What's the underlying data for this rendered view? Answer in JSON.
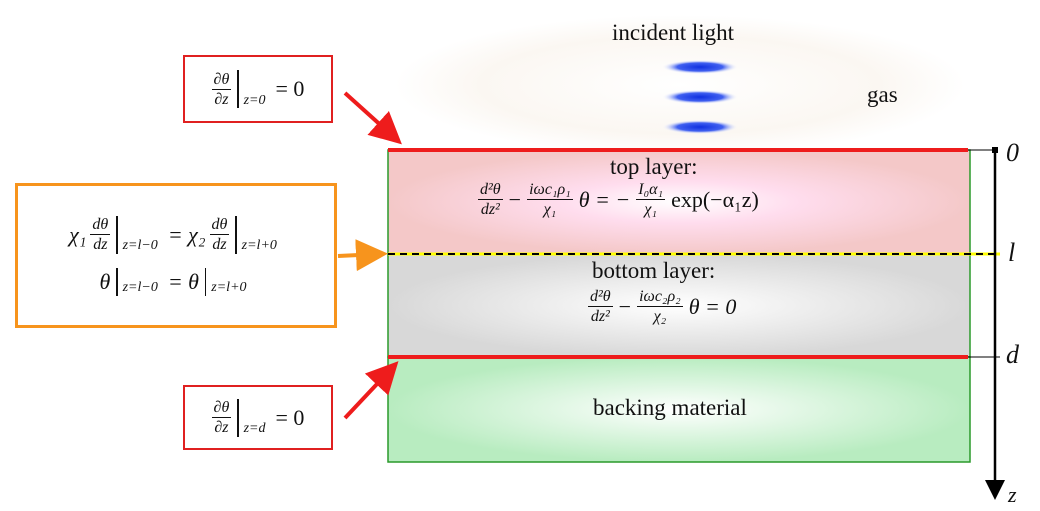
{
  "labels": {
    "incident": "incident light",
    "gas": "gas",
    "top": "top layer:",
    "bottom": "bottom layer:",
    "backing": "backing material"
  },
  "axis": {
    "zero": "0",
    "l": "l",
    "d": "d",
    "z": "z"
  },
  "bc_top": {
    "num": "∂θ",
    "den": "∂z",
    "sub": "z=0",
    "rhs": "= 0"
  },
  "bc_bottom": {
    "num": "∂θ",
    "den": "∂z",
    "sub": "z=d",
    "rhs": "= 0"
  },
  "interface": {
    "line1": {
      "chi1": "χ₁",
      "num1": "dθ",
      "den1": "dz",
      "sub1": "z=l−0",
      "chi2": "= χ₂",
      "num2": "dθ",
      "den2": "dz",
      "sub2": "z=l+0"
    },
    "line2": {
      "lhs": "θ",
      "sub1": "z=l−0",
      "mid": "= θ",
      "sub2": "z=l+0"
    }
  },
  "top_eq": {
    "num1": "d²θ",
    "den1": "dz²",
    "op": "−",
    "num2": "iωc₁ρ₁",
    "den2": "χ₁",
    "mid": "θ = −",
    "num3": "I₀α₁",
    "den3": "χ₁",
    "rhs": "exp(−α₁z)"
  },
  "bottom_eq": {
    "num1": "d²θ",
    "den1": "dz²",
    "op": "−",
    "num2": "iωc₂ρ₂",
    "den2": "χ₂",
    "rhs": "θ = 0"
  }
}
